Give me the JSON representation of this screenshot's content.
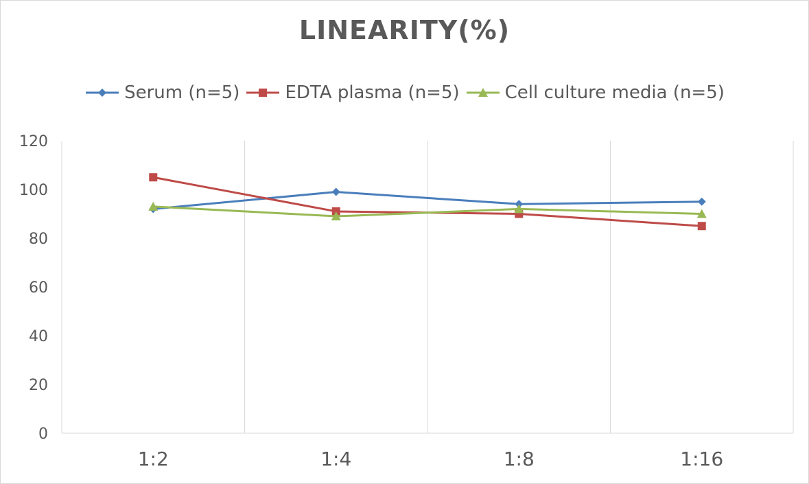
{
  "chart_data": {
    "type": "line",
    "title": "LINEARITY(%)",
    "categories": [
      "1:2",
      "1:4",
      "1:8",
      "1:16"
    ],
    "series": [
      {
        "name": "Serum (n=5)",
        "values": [
          92,
          99,
          94,
          95
        ],
        "color": "#4a7ebb",
        "marker": "diamond"
      },
      {
        "name": "EDTA plasma (n=5)",
        "values": [
          105,
          91,
          90,
          85
        ],
        "color": "#be4b48",
        "marker": "square"
      },
      {
        "name": "Cell culture media (n=5)",
        "values": [
          93,
          89,
          92,
          90
        ],
        "color": "#98b954",
        "marker": "triangle"
      }
    ],
    "ylim": [
      0,
      120
    ],
    "yticks": [
      "0",
      "20",
      "40",
      "60",
      "80",
      "100",
      "120"
    ],
    "grid": "vertical",
    "legend_position": "top"
  }
}
